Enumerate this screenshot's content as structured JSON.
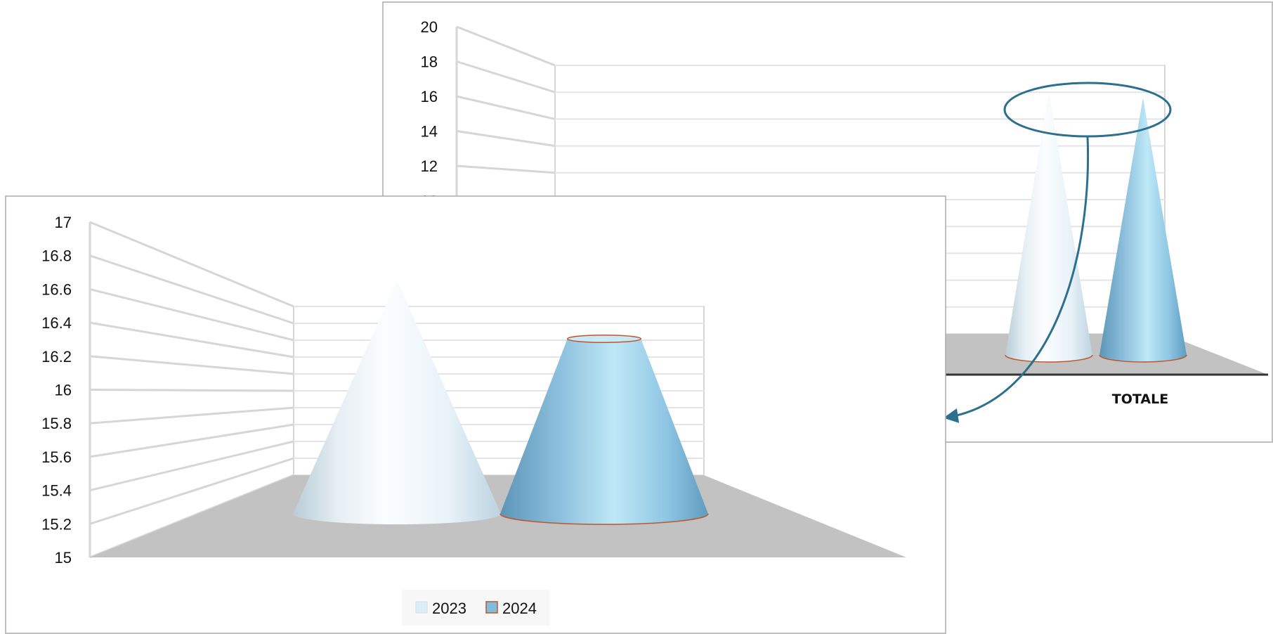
{
  "colors": {
    "series_2023": "#dceef8",
    "series_2024": "#7fbde0",
    "floor": "#c2c2c2",
    "grid": "#d6d6d6",
    "frame": "#aaaaaa",
    "callout": "#2d6f8e",
    "cone_edge": "#c0552a"
  },
  "chart_data": [
    {
      "type": "bar",
      "shape": "3d-cone",
      "categories": [
        "TOTALE"
      ],
      "series": [
        {
          "name": "2023",
          "values": [
            16.6
          ]
        },
        {
          "name": "2024",
          "values": [
            16.2
          ]
        }
      ],
      "ylim": [
        0,
        20
      ],
      "ytick_labels": [
        "20",
        "18",
        "16",
        "14",
        "12",
        "10"
      ],
      "category_label": "TOTALE",
      "grid": true,
      "highlight": "ellipse around cone tips with arrow pointing to zoomed chart"
    },
    {
      "type": "bar",
      "shape": "3d-cone",
      "categories": [
        ""
      ],
      "series": [
        {
          "name": "2023",
          "values": [
            16.6
          ]
        },
        {
          "name": "2024",
          "values": [
            16.2
          ]
        }
      ],
      "ylim": [
        15,
        17
      ],
      "ytick_labels": [
        "17",
        "16.8",
        "16.6",
        "16.4",
        "16.2",
        "16",
        "15.8",
        "15.6",
        "15.4",
        "15.2",
        "15"
      ],
      "grid": true,
      "legend": {
        "position": "bottom",
        "entries": [
          "2023",
          "2024"
        ]
      }
    }
  ]
}
